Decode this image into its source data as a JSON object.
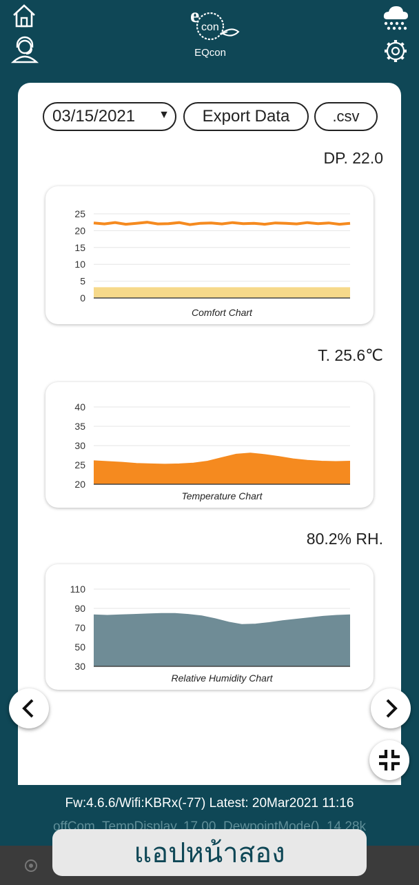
{
  "header": {
    "app_name": "EQcon",
    "logo_text": "e",
    "logo_sub": "con"
  },
  "controls": {
    "date_value": "03/15/2021",
    "export_label": "Export Data",
    "format_label": ".csv"
  },
  "readings": {
    "dewpoint": "DP. 22.0",
    "temperature": "T. 25.6℃",
    "humidity": "80.2% RH."
  },
  "charts": [
    {
      "type": "area",
      "title": "Comfort Chart",
      "yticks": [
        "25",
        "20",
        "15",
        "10",
        "5",
        "0"
      ],
      "ylim": [
        0,
        25
      ],
      "series": [
        {
          "values": [
            22.3,
            22.0,
            22.4,
            21.9,
            22.2,
            22.5,
            22.0,
            22.1,
            22.4,
            21.8,
            22.2,
            22.3,
            22.0,
            22.4,
            22.1,
            22.2,
            21.9,
            22.3,
            22.2,
            22.0,
            22.4,
            22.1,
            22.3,
            21.9,
            22.2
          ],
          "color": "#f58a1f",
          "kind": "line"
        },
        {
          "values": [
            3,
            3,
            3,
            3,
            3,
            3,
            3,
            3,
            3,
            3,
            3,
            3,
            3,
            3,
            3,
            3,
            3,
            3,
            3,
            3,
            3,
            3,
            3,
            3,
            3
          ],
          "color": "#f6d98a",
          "kind": "area"
        }
      ]
    },
    {
      "type": "area",
      "title": "Temperature Chart",
      "yticks": [
        "40",
        "35",
        "30",
        "25",
        "20"
      ],
      "ylim": [
        20,
        40
      ],
      "series": [
        {
          "values": [
            26.0,
            25.8,
            25.6,
            25.3,
            25.2,
            25.1,
            25.2,
            25.4,
            25.9,
            26.8,
            27.7,
            28.0,
            27.6,
            27.1,
            26.5,
            26.1,
            25.9,
            25.8,
            25.9
          ],
          "color": "#f58a1f",
          "kind": "area"
        }
      ]
    },
    {
      "type": "area",
      "title": "Relative Humidity Chart",
      "yticks": [
        "110",
        "90",
        "70",
        "50",
        "30"
      ],
      "ylim": [
        30,
        110
      ],
      "series": [
        {
          "values": [
            83,
            82.5,
            83,
            83.5,
            84,
            84.5,
            84.5,
            83.5,
            82,
            79,
            75.5,
            73,
            73.5,
            75,
            77,
            78.5,
            80,
            81.5,
            82.5,
            83
          ],
          "color": "#6f8c96",
          "kind": "area"
        }
      ]
    }
  ],
  "footer": {
    "status": "Fw:4.6.6/Wifi:KBRx(-77) Latest: 20Mar2021 11:16",
    "debug": "offCom, TempDisplay, 17.00, DewpointMode(), 14.28k"
  },
  "toast": {
    "text": "แอปหน้าสอง"
  },
  "colors": {
    "background": "#0f4756",
    "accent": "#f58a1f",
    "humidity": "#6f8c96",
    "comfort_band": "#f6d98a"
  }
}
